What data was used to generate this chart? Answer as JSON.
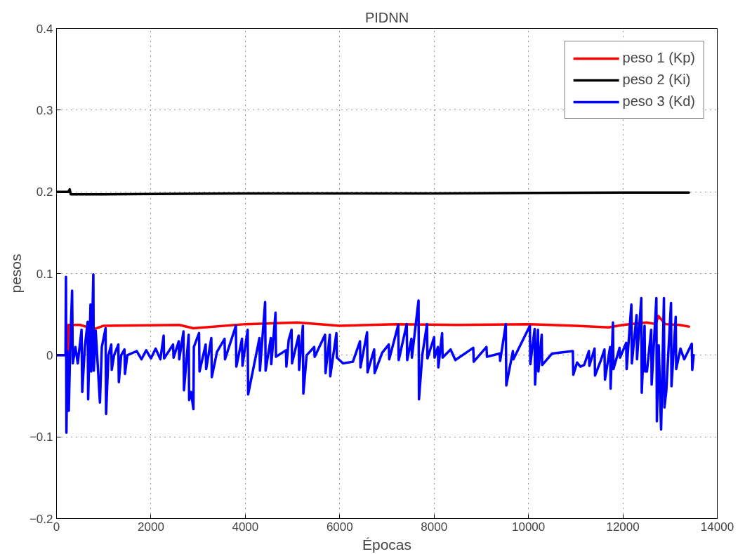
{
  "chart_data": {
    "type": "line",
    "title": "PIDNN",
    "xlabel": "Épocas",
    "ylabel": "pesos",
    "xlim": [
      0,
      14000
    ],
    "xticks": [
      0,
      2000,
      4000,
      6000,
      8000,
      10000,
      12000,
      14000
    ],
    "ylim": [
      -0.2,
      0.4
    ],
    "yticks": [
      {
        "value": -0.2,
        "label": "−0.2"
      },
      {
        "value": -0.1,
        "label": "−0.1"
      },
      0,
      0.1,
      0.2,
      0.3,
      0.4
    ],
    "grid": true,
    "legend": "top right",
    "line_style": "solid",
    "marker": "none",
    "series": [
      {
        "name": "peso 1 (Kp)",
        "color": "#ff0000",
        "x": [
          0,
          240,
          250,
          500,
          800,
          1000,
          2600,
          2900,
          4000,
          5100,
          6000,
          7200,
          8500,
          10000,
          11000,
          11700,
          12000,
          12500,
          12700,
          12750,
          12900,
          13200,
          13400
        ],
        "values": [
          0,
          0,
          0.037,
          0.037,
          0.032,
          0.036,
          0.037,
          0.033,
          0.038,
          0.04,
          0.036,
          0.038,
          0.037,
          0.038,
          0.036,
          0.034,
          0.037,
          0.04,
          0.038,
          0.048,
          0.038,
          0.037,
          0.035
        ]
      },
      {
        "name": "peso 2 (Ki)",
        "color": "#000000",
        "x": [
          0,
          250,
          280,
          300,
          1000,
          4000,
          8000,
          12000,
          13400
        ],
        "values": [
          0.2,
          0.2,
          0.203,
          0.197,
          0.197,
          0.198,
          0.198,
          0.199,
          0.199
        ]
      },
      {
        "name": "peso 3 (Kd)",
        "color": "#0000ff",
        "x": [
          0,
          190,
          200,
          210,
          230,
          260,
          290,
          330,
          345,
          400,
          450,
          530,
          545,
          600,
          660,
          670,
          720,
          735,
          780,
          790,
          830,
          920,
          960,
          1040,
          1050,
          1100,
          1160,
          1170,
          1220,
          1310,
          1320,
          1370,
          1440,
          1450,
          1500,
          1700,
          1800,
          1900,
          2000,
          2100,
          2200,
          2270,
          2280,
          2470,
          2480,
          2590,
          2600,
          2690,
          2700,
          2800,
          2810,
          2850,
          2900,
          2910,
          3020,
          3030,
          3160,
          3170,
          3280,
          3290,
          3400,
          3560,
          3570,
          3800,
          3810,
          3930,
          3940,
          4050,
          4060,
          4300,
          4310,
          4420,
          4430,
          4540,
          4550,
          4640,
          4650,
          4860,
          4870,
          4920,
          4980,
          4990,
          5130,
          5140,
          5220,
          5230,
          5300,
          5460,
          5470,
          5690,
          5700,
          5790,
          5800,
          5930,
          5940,
          6070,
          6280,
          6430,
          6440,
          6580,
          6590,
          6730,
          6740,
          6900,
          7040,
          7050,
          7240,
          7250,
          7420,
          7430,
          7520,
          7530,
          7670,
          7680,
          7750,
          7850,
          7860,
          8000,
          8010,
          8080,
          8090,
          8170,
          8180,
          8350,
          8450,
          8830,
          8840,
          9110,
          9120,
          9390,
          9400,
          9520,
          9530,
          9670,
          9680,
          10030,
          10040,
          10130,
          10140,
          10200,
          10210,
          10280,
          10290,
          10500,
          10940,
          10950,
          11030,
          11100,
          11180,
          11280,
          11290,
          11400,
          11410,
          11530,
          11610,
          11620,
          11730,
          11740,
          11790,
          11800,
          11930,
          11940,
          12070,
          12080,
          12180,
          12190,
          12290,
          12300,
          12390,
          12400,
          12460,
          12470,
          12510,
          12600,
          12610,
          12710,
          12720,
          12760,
          12810,
          12870,
          12880,
          12920,
          13020,
          13030,
          13120,
          13130,
          13220,
          13300,
          13460,
          13470,
          13500
        ],
        "values": [
          0,
          0,
          0.096,
          -0.095,
          0.005,
          -0.068,
          0.01,
          0.079,
          -0.01,
          0.01,
          -0.01,
          0.031,
          -0.045,
          0.01,
          0.041,
          -0.054,
          0.062,
          -0.02,
          0.099,
          -0.019,
          0.03,
          -0.058,
          0.01,
          0.033,
          -0.072,
          0,
          0.013,
          -0.018,
          0,
          0.013,
          -0.033,
          0,
          0.007,
          -0.023,
          0,
          0.005,
          -0.005,
          0.006,
          -0.004,
          0.008,
          -0.005,
          0.024,
          -0.004,
          0.013,
          -0.003,
          0.017,
          -0.005,
          0.029,
          -0.043,
          0.025,
          -0.055,
          -0.045,
          -0.066,
          0.01,
          0.027,
          -0.02,
          0.013,
          -0.017,
          0.021,
          -0.027,
          0.004,
          0.02,
          -0.005,
          0.036,
          -0.014,
          0.02,
          -0.013,
          0.031,
          -0.048,
          0.021,
          -0.019,
          0.065,
          -0.019,
          0.021,
          -0.011,
          0.052,
          -0.002,
          0.006,
          -0.014,
          0.019,
          0.031,
          -0.01,
          0.024,
          -0.018,
          0.036,
          -0.047,
          0,
          0.01,
          -0.002,
          0.025,
          -0.022,
          0.025,
          -0.026,
          0.027,
          -0.003,
          -0.01,
          -0.008,
          0.017,
          -0.015,
          0.028,
          -0.021,
          0.007,
          -0.022,
          0.003,
          0.013,
          -0.005,
          0.037,
          -0.006,
          0.038,
          -0.006,
          0.02,
          -0.003,
          0.067,
          -0.054,
          0,
          0.038,
          -0.004,
          0.022,
          -0.003,
          0.01,
          -0.015,
          0.027,
          -0.003,
          0.007,
          -0.006,
          0.009,
          -0.008,
          0.01,
          -0.002,
          0.002,
          -0.007,
          0.038,
          -0.037,
          0.005,
          -0.005,
          0.036,
          -0.011,
          0.032,
          -0.036,
          0.031,
          -0.02,
          0.025,
          -0.012,
          0.002,
          0.005,
          -0.024,
          -0.009,
          -0.014,
          -0.012,
          0.005,
          -0.013,
          0.008,
          -0.025,
          -0.007,
          0.007,
          -0.03,
          0.01,
          -0.041,
          0.04,
          -0.017,
          0.009,
          -0.003,
          0.015,
          -0.017,
          0.062,
          -0.01,
          0.049,
          -0.005,
          0.07,
          -0.046,
          0.036,
          -0.02,
          -0.02,
          0.031,
          -0.036,
          0.07,
          -0.081,
          0.012,
          -0.091,
          0.07,
          -0.064,
          -0.044,
          0.064,
          -0.038,
          0.047,
          -0.017,
          0.008,
          -0.005,
          0.014,
          -0.018,
          0
        ]
      }
    ]
  }
}
